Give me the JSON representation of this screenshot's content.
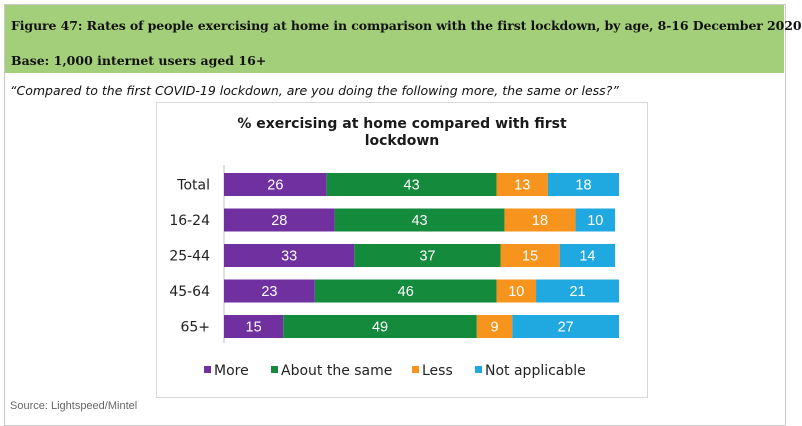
{
  "figure": {
    "title": "Figure 47: Rates of people exercising at home in comparison with the first lockdown, by age, 8-16 December 2020",
    "base": "Base: 1,000 internet users aged 16+",
    "question": "“Compared to the first COVID-19 lockdown, are you doing the following more, the same or less?”",
    "source": "Source: Lightspeed/Mintel"
  },
  "colors": {
    "header_bg": "#a4cf7a",
    "More": "#7030a0",
    "About the same": "#148a3c",
    "Less": "#f7941d",
    "Not applicable": "#20a9e1"
  },
  "chart_data": {
    "type": "bar",
    "orientation": "horizontal",
    "stacked": true,
    "title": "% exercising at home compared with first lockdown",
    "title_lines": [
      "% exercising at home compared with first",
      "lockdown"
    ],
    "categories": [
      "Total",
      "16-24",
      "25-44",
      "45-64",
      "65+"
    ],
    "series": [
      {
        "name": "More",
        "values": [
          26,
          28,
          33,
          23,
          15
        ]
      },
      {
        "name": "About the same",
        "values": [
          43,
          43,
          37,
          46,
          49
        ]
      },
      {
        "name": "Less",
        "values": [
          13,
          18,
          15,
          10,
          9
        ]
      },
      {
        "name": "Not applicable",
        "values": [
          18,
          10,
          14,
          21,
          27
        ]
      }
    ],
    "xlim": [
      0,
      100
    ],
    "grid": false,
    "legend_position": "bottom"
  }
}
